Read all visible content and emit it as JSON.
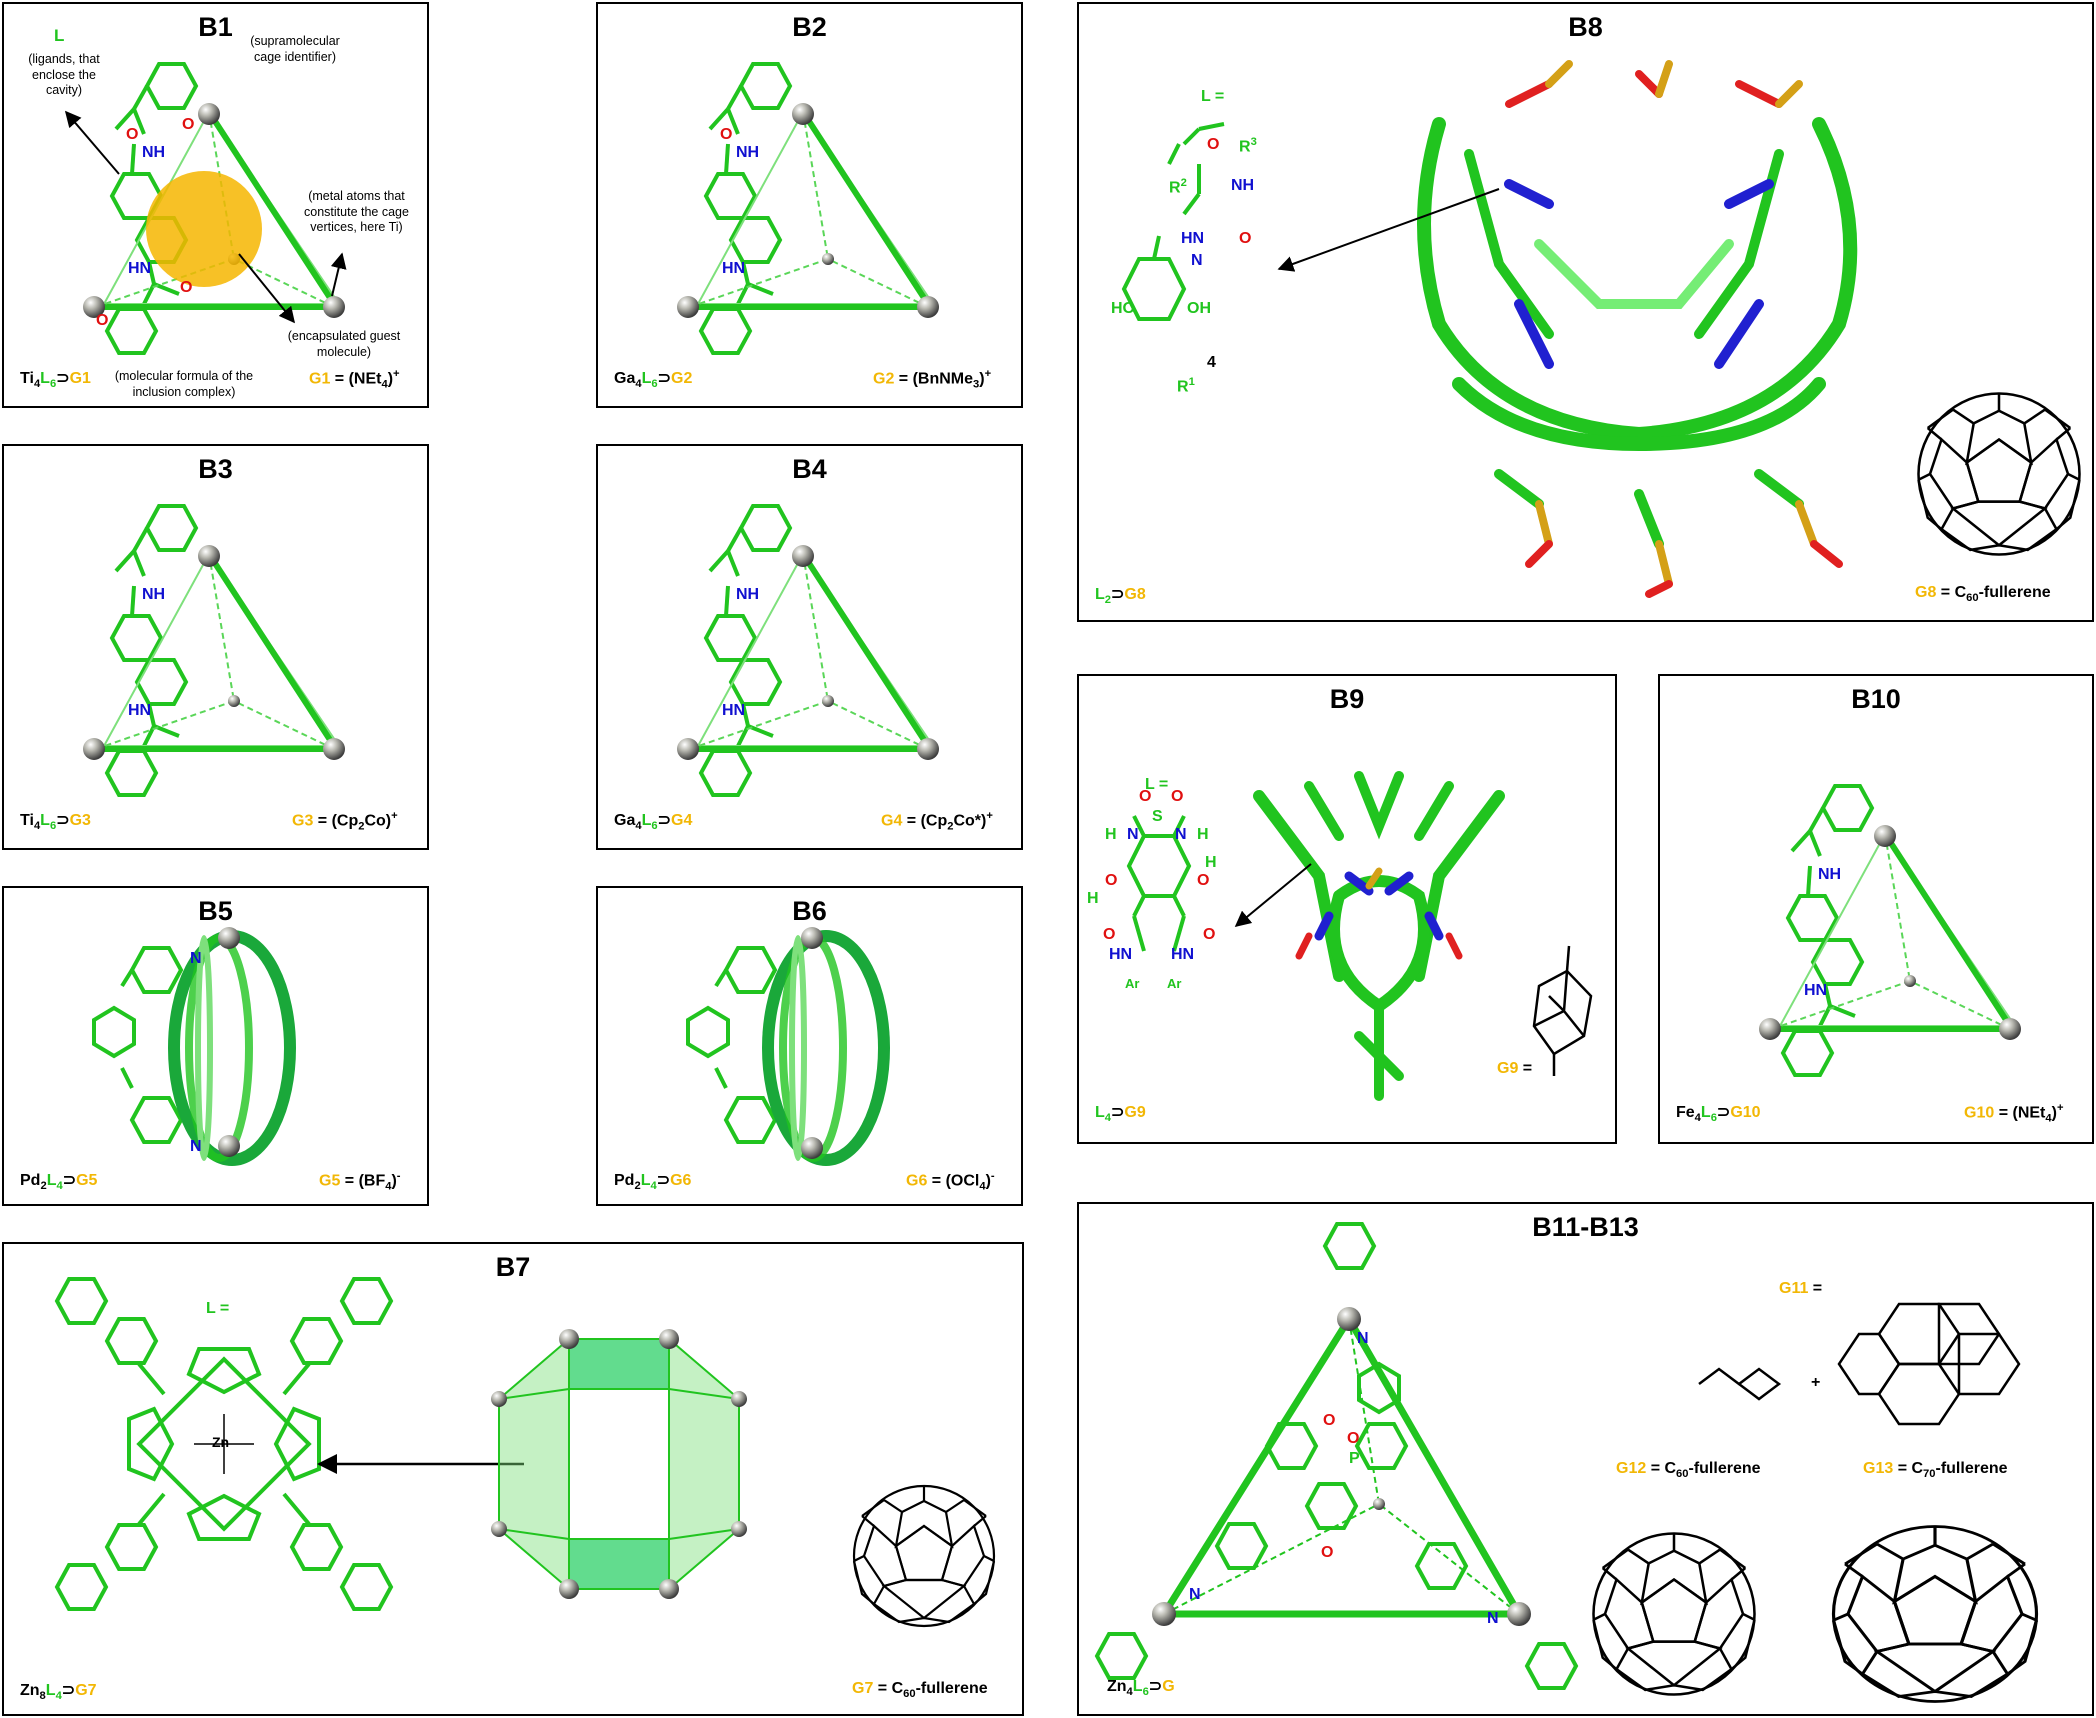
{
  "panels": {
    "B1": {
      "title": "B1",
      "formula": {
        "m": "Ti",
        "m_sub": "4",
        "l": "L",
        "l_sub": "6",
        "g": "G1"
      },
      "guest": {
        "name": "G1",
        "eq": " = (NEt",
        "sub": "4",
        "tail": ")",
        "sup": "+"
      },
      "notes": {
        "L": "L",
        "ligand": "(ligands, that enclose the cavity)",
        "cage": "(supramolecular cage identifier)",
        "metal": "(metal atoms that constitute the cage vertices, here Ti)",
        "guest": "(encapsulated guest molecule)",
        "formula": "(molecular formula of the inclusion complex)"
      }
    },
    "B2": {
      "title": "B2",
      "formula": {
        "m": "Ga",
        "m_sub": "4",
        "l": "L",
        "l_sub": "6",
        "g": "G2"
      },
      "guest": {
        "name": "G2",
        "eq": " = (BnNMe",
        "sub": "3",
        "tail": ")",
        "sup": "+"
      }
    },
    "B3": {
      "title": "B3",
      "formula": {
        "m": "Ti",
        "m_sub": "4",
        "l": "L",
        "l_sub": "6",
        "g": "G3"
      },
      "guest": {
        "name": "G3",
        "eq": " = (Cp",
        "sub": "2",
        "tail": "Co)",
        "sup": "+"
      }
    },
    "B4": {
      "title": "B4",
      "formula": {
        "m": "Ga",
        "m_sub": "4",
        "l": "L",
        "l_sub": "6",
        "g": "G4"
      },
      "guest": {
        "name": "G4",
        "eq": " = (Cp",
        "sub": "2",
        "tail": "Co*)",
        "sup": "+"
      }
    },
    "B5": {
      "title": "B5",
      "formula": {
        "m": "Pd",
        "m_sub": "2",
        "l": "L",
        "l_sub": "4",
        "g": "G5"
      },
      "guest": {
        "name": "G5",
        "eq": " = (BF",
        "sub": "4",
        "tail": ")",
        "sup": "-"
      }
    },
    "B6": {
      "title": "B6",
      "formula": {
        "m": "Pd",
        "m_sub": "2",
        "l": "L",
        "l_sub": "4",
        "g": "G6"
      },
      "guest": {
        "name": "G6",
        "eq": " = (OCl",
        "sub": "4",
        "tail": ")",
        "sup": "-"
      }
    },
    "B7": {
      "title": "B7",
      "formula": {
        "m": "Zn",
        "m_sub": "8",
        "l": "L",
        "l_sub": "4",
        "g": "G7"
      },
      "guest": {
        "name": "G7",
        "eq": " = C",
        "sub": "60",
        "tail": "-fullerene",
        "sup": ""
      },
      "l_eq": "L ="
    },
    "B8": {
      "title": "B8",
      "formula": {
        "m": "",
        "m_sub": "",
        "l": "L",
        "l_sub": "2",
        "g": "G8"
      },
      "guest": {
        "name": "G8",
        "eq": " = C",
        "sub": "60",
        "tail": "-fullerene",
        "sup": ""
      },
      "l_eq": "L ="
    },
    "B9": {
      "title": "B9",
      "formula": {
        "m": "",
        "m_sub": "",
        "l": "L",
        "l_sub": "4",
        "g": "G9"
      },
      "guest": {
        "name": "G9",
        "eq": " =",
        "sub": "",
        "tail": "",
        "sup": ""
      },
      "l_eq": "L ="
    },
    "B10": {
      "title": "B10",
      "formula": {
        "m": "Fe",
        "m_sub": "4",
        "l": "L",
        "l_sub": "6",
        "g": "G10"
      },
      "guest": {
        "name": "G10",
        "eq": " = (NEt",
        "sub": "4",
        "tail": ")",
        "sup": "+"
      }
    },
    "B11": {
      "title": "B11-B13",
      "formula": {
        "m": "Zn",
        "m_sub": "4",
        "l": "L",
        "l_sub": "6",
        "g": "G"
      },
      "g11": {
        "name": "G11",
        "eq": " ="
      },
      "g12": {
        "name": "G12",
        "eq": " = C",
        "sub": "60",
        "tail": "-fullerene"
      },
      "g13": {
        "name": "G13",
        "eq": " = C",
        "sub": "70",
        "tail": "-fullerene"
      }
    }
  },
  "atoms": {
    "O": "O",
    "N": "N",
    "H": "H",
    "NH": "NH",
    "HN": "HN",
    "Zn": "Zn",
    "P": "P",
    "S": "S",
    "Ar": "Ar",
    "R1": "R",
    "R2": "R",
    "R3": "R",
    "plus": "+",
    "four": "4"
  },
  "colors": {
    "ligand": "#21c41f",
    "guest": "#f2b705",
    "nitrogen": "#1010d0",
    "oxygen": "#e01010",
    "sulfur": "#d4a017"
  }
}
